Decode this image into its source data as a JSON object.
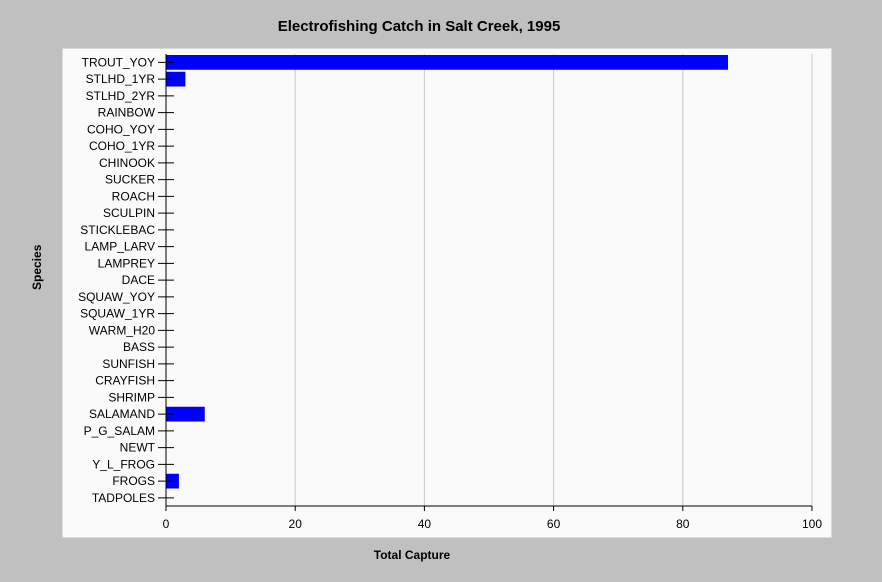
{
  "chart_data": {
    "type": "bar",
    "orientation": "horizontal",
    "title": "Electrofishing Catch in Salt Creek, 1995",
    "xlabel": "Total Capture",
    "ylabel": "Species",
    "xlim": [
      0,
      100
    ],
    "x_ticks": [
      0,
      20,
      40,
      60,
      80,
      100
    ],
    "grid": "vertical",
    "bar_color": "#0000ff",
    "categories": [
      "TROUT_YOY",
      "STLHD_1YR",
      "STLHD_2YR",
      "RAINBOW",
      "COHO_YOY",
      "COHO_1YR",
      "CHINOOK",
      "SUCKER",
      "ROACH",
      "SCULPIN",
      "STICKLEBAC",
      "LAMP_LARV",
      "LAMPREY",
      "DACE",
      "SQUAW_YOY",
      "SQUAW_1YR",
      "WARM_H20",
      "BASS",
      "SUNFISH",
      "CRAYFISH",
      "SHRIMP",
      "SALAMAND",
      "P_G_SALAM",
      "NEWT",
      "Y_L_FROG",
      "FROGS",
      "TADPOLES"
    ],
    "values": [
      87,
      3,
      0,
      0,
      0,
      0,
      0,
      0,
      0,
      0,
      0,
      0,
      0,
      0,
      0,
      0,
      0,
      0,
      0,
      0,
      0,
      6,
      0,
      0,
      0,
      2,
      0
    ]
  }
}
